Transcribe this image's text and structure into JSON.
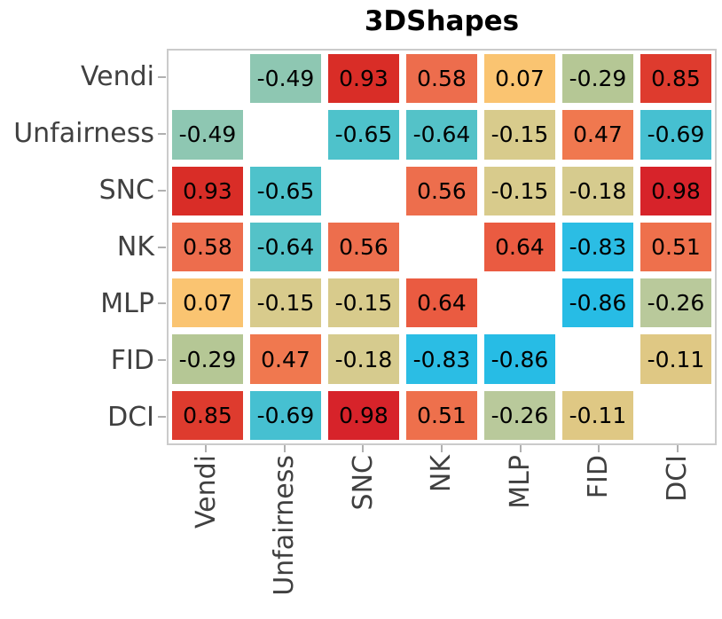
{
  "figure": {
    "title": "3DShapes"
  },
  "chart_data": {
    "type": "heatmap",
    "title": "3DShapes",
    "categories": [
      "Vendi",
      "Unfairness",
      "SNC",
      "NK",
      "MLP",
      "FID",
      "DCI"
    ],
    "matrix": [
      [
        null,
        -0.49,
        0.93,
        0.58,
        0.07,
        -0.29,
        0.85
      ],
      [
        -0.49,
        null,
        -0.65,
        -0.64,
        -0.15,
        0.47,
        -0.69
      ],
      [
        0.93,
        -0.65,
        null,
        0.56,
        -0.15,
        -0.18,
        0.98
      ],
      [
        0.58,
        -0.64,
        0.56,
        null,
        0.64,
        -0.83,
        0.51
      ],
      [
        0.07,
        -0.15,
        -0.15,
        0.64,
        null,
        -0.86,
        -0.26
      ],
      [
        -0.29,
        0.47,
        -0.18,
        -0.83,
        -0.86,
        null,
        -0.11
      ],
      [
        0.85,
        -0.69,
        0.98,
        0.51,
        -0.26,
        -0.11,
        null
      ]
    ],
    "cell_colors": [
      [
        null,
        "#8ec7b2",
        "#d92d27",
        "#ed6d4d",
        "#fac471",
        "#b5c795",
        "#de3b2e"
      ],
      [
        "#8ec7b2",
        null,
        "#4ec2cb",
        "#54c2c8",
        "#d8cb8c",
        "#f0784f",
        "#46c0d1"
      ],
      [
        "#d92d27",
        "#4ec2cb",
        null,
        "#ed6e4d",
        "#d8cb8c",
        "#d6cb8e",
        "#d7232a"
      ],
      [
        "#ed6d4d",
        "#54c2c8",
        "#ed6e4d",
        null,
        "#ea5b41",
        "#2bbde4",
        "#ee704c"
      ],
      [
        "#fac471",
        "#d8cb8c",
        "#d8cb8c",
        "#ea5b41",
        null,
        "#27bce5",
        "#b9c99b"
      ],
      [
        "#b5c795",
        "#f0784f",
        "#d6cb8e",
        "#2bbde4",
        "#27bce5",
        null,
        "#dfc884"
      ],
      [
        "#de3b2e",
        "#46c0d1",
        "#d7232a",
        "#ee704c",
        "#b9c99b",
        "#dfc884",
        null
      ]
    ],
    "value_range": [
      -1,
      1
    ],
    "diagonal": "blank",
    "colormap_hint": "diverging: bright blue (negative) -> khaki (near zero) -> red (positive)",
    "grid": false,
    "legend": "none"
  },
  "style": {
    "background": "#ffffff",
    "frame_color": "#cbcbcb",
    "tick_color": "#b0b0b0",
    "axis_label_color": "#404040",
    "title_color": "#000000",
    "annotation_color": "#000000"
  }
}
